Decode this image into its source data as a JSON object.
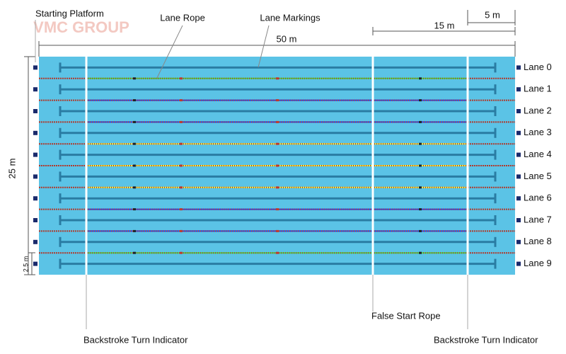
{
  "logo": {
    "name": "VMC GROUP"
  },
  "labels": {
    "starting_platform": "Starting Platform",
    "lane_rope": "Lane Rope",
    "lane_markings": "Lane Markings",
    "false_start_rope": "False Start Rope",
    "backstroke_left": "Backstroke Turn Indicator",
    "backstroke_right": "Backstroke Turn Indicator"
  },
  "dimensions": {
    "length": "50 m",
    "width": "25 m",
    "lane_width": "2.5 m",
    "false_start_distance": "15 m",
    "backstroke_distance": "5 m"
  },
  "lanes": [
    "Lane 0",
    "Lane 1",
    "Lane 2",
    "Lane 3",
    "Lane 4",
    "Lane 5",
    "Lane 6",
    "Lane 7",
    "Lane 8",
    "Lane 9"
  ]
}
